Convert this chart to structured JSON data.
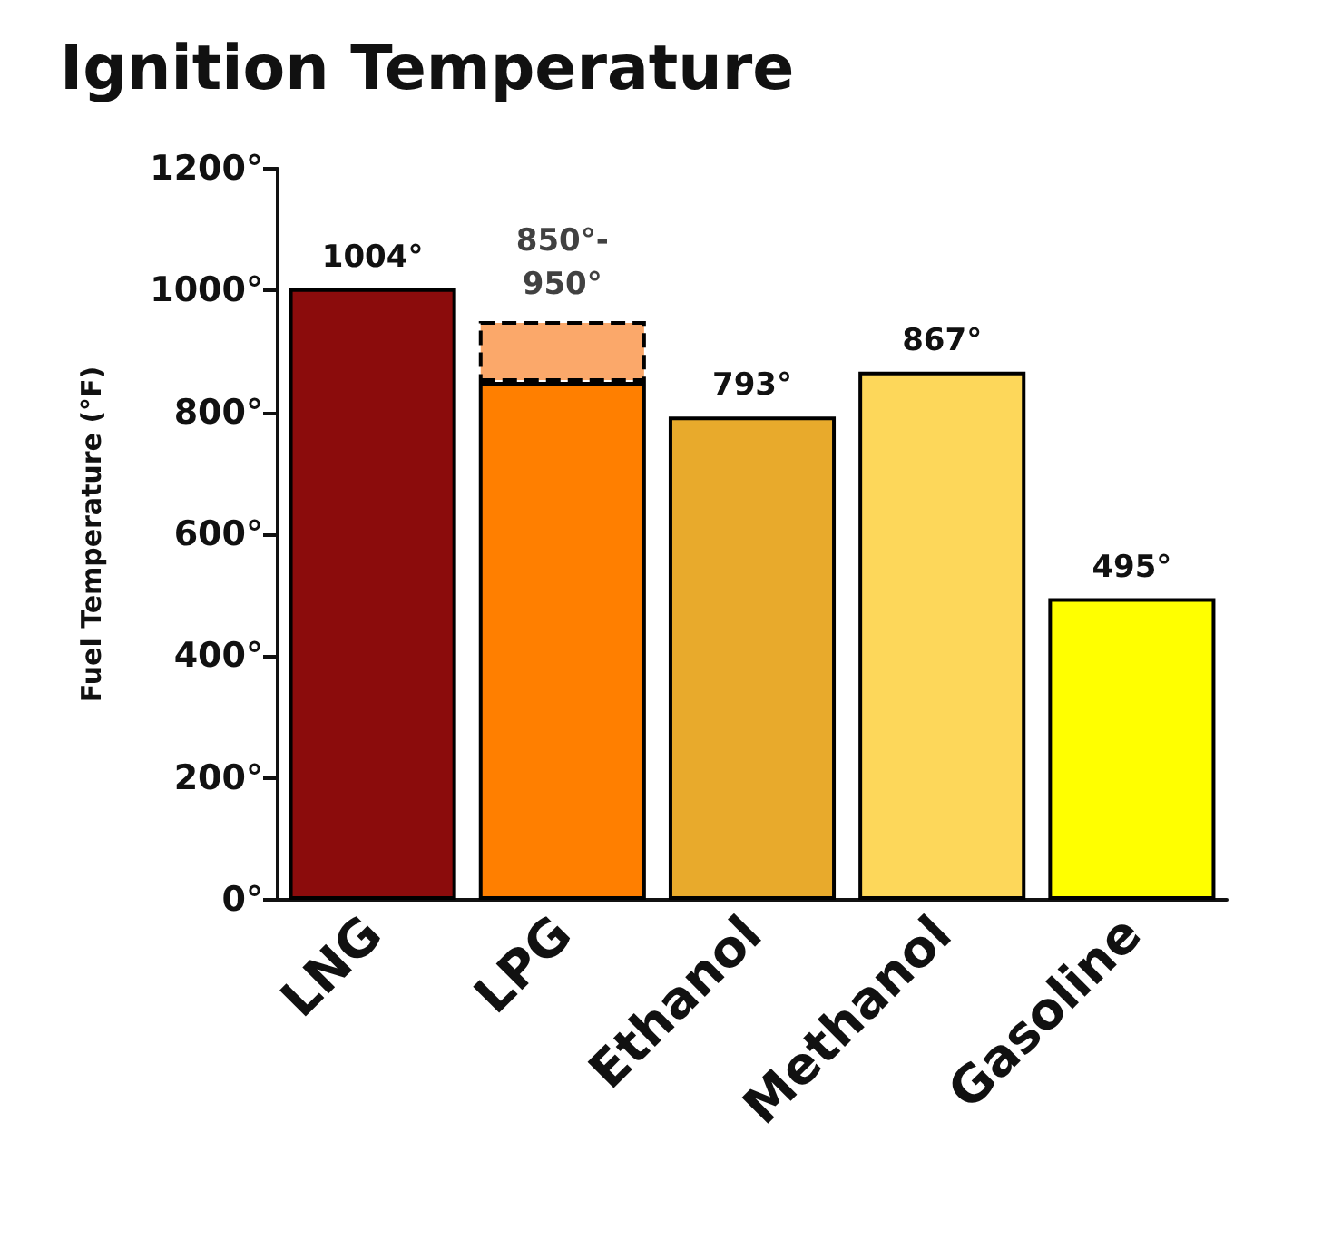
{
  "chart_data": {
    "type": "bar",
    "title": "Ignition Temperature",
    "ylabel": "Fuel Temperature (°F)",
    "categories": [
      "LNG",
      "LPG",
      "Ethanol",
      "Methanol",
      "Gasoline"
    ],
    "stacked": true,
    "series": [
      {
        "values": [
          1004,
          850,
          793,
          867,
          495
        ],
        "colors": [
          "#8b0c0c",
          "#ff7f00",
          "#e8aa2c",
          "#fdd75a",
          "#ffff00"
        ],
        "value_labels": [
          "1004°",
          null,
          "793°",
          "867°",
          "495°"
        ],
        "line_style": "solid"
      },
      {
        "values": [
          null,
          100,
          null,
          null,
          null
        ],
        "colors": [
          null,
          "#fba86a",
          null,
          null,
          null
        ],
        "line_style": "dashed"
      }
    ],
    "ylim": [
      0,
      1200
    ],
    "yticks": [
      {
        "value": 0,
        "label": "0°"
      },
      {
        "value": 200,
        "label": "200°"
      },
      {
        "value": 400,
        "label": "400°"
      },
      {
        "value": 600,
        "label": "600°"
      },
      {
        "value": 800,
        "label": "800°"
      },
      {
        "value": 1000,
        "label": "1000°"
      },
      {
        "value": 1200,
        "label": "1200°"
      }
    ],
    "grid": false,
    "annotations": [
      {
        "text": "850°-\n950°",
        "x": "LPG",
        "y": 950
      }
    ]
  }
}
